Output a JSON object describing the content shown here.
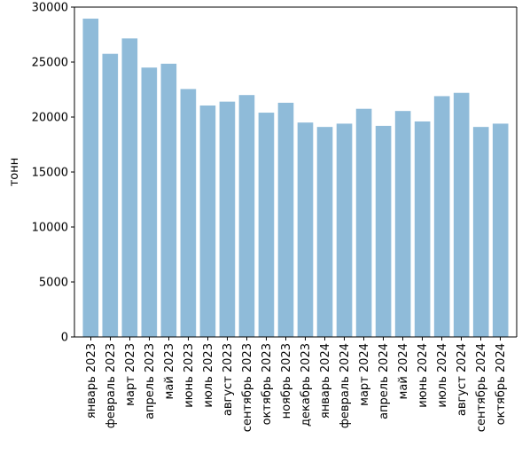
{
  "chart_data": {
    "type": "bar",
    "title": "",
    "xlabel": "",
    "ylabel": "тонн",
    "ylim": [
      0,
      30000
    ],
    "yticks": [
      0,
      5000,
      10000,
      15000,
      20000,
      25000,
      30000
    ],
    "grid": false,
    "legend": "none",
    "bar_color": "#8fbbd9",
    "categories": [
      "январь 2023",
      "февраль 2023",
      "март 2023",
      "апрель 2023",
      "май 2023",
      "июнь 2023",
      "июль 2023",
      "август 2023",
      "сентябрь 2023",
      "октябрь 2023",
      "ноябрь 2023",
      "декабрь 2023",
      "январь 2024",
      "февраль 2024",
      "март 2024",
      "апрель 2024",
      "май 2024",
      "июнь 2024",
      "июль 2024",
      "август 2024",
      "сентябрь 2024",
      "октябрь 2024"
    ],
    "values": [
      28950,
      25750,
      27150,
      24500,
      24850,
      22550,
      21050,
      21400,
      22000,
      20400,
      21300,
      19500,
      19100,
      19400,
      20750,
      19200,
      20550,
      19600,
      21900,
      22200,
      19100,
      19400
    ]
  }
}
